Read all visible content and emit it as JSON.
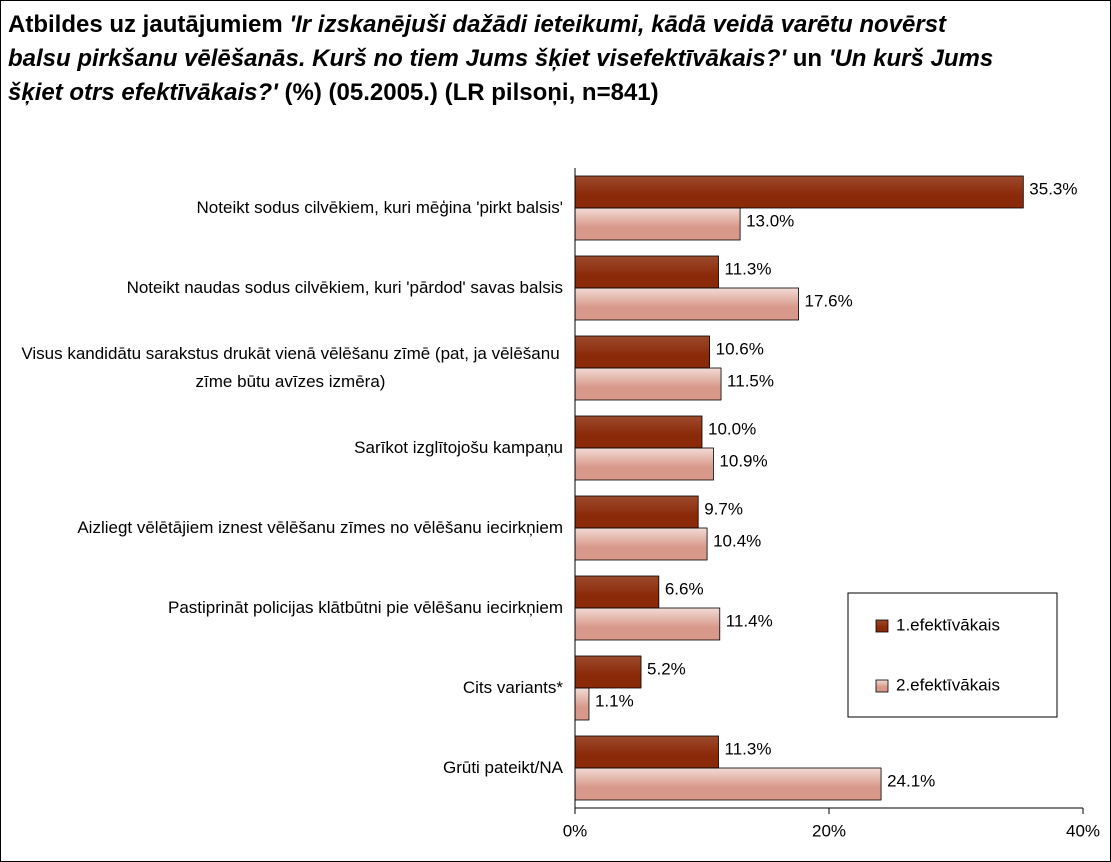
{
  "chart_data": {
    "type": "barh",
    "title": [
      {
        "text": "Atbildes uz jautājumiem ",
        "italic": false
      },
      {
        "text": "'Ir izskanējuši dažādi ieteikumi, kādā veidā varētu novērst balsu pirkšanu vēlēšanās. Kurš no tiem Jums šķiet visefektīvākais?'",
        "italic": true
      },
      {
        "text": " un ",
        "italic": false
      },
      {
        "text": "'Un kurš Jums šķiet otrs efektīvākais?'",
        "italic": true
      },
      {
        "text": " (%) (05.2005.) (LR pilsoņi, n=841)",
        "italic": false
      }
    ],
    "categories": [
      "Noteikt sodus cilvēkiem, kuri mēģina 'pirkt balsis'",
      "Noteikt naudas sodus cilvēkiem, kuri 'pārdod' savas balsis",
      "Visus kandidātu sarakstus drukāt vienā vēlēšanu zīmē (pat, ja vēlēšanu zīme būtu avīzes izmēra)",
      "Sarīkot izglītojošu kampaņu",
      "Aizliegt vēlētājiem iznest vēlēšanu zīmes no vēlēšanu iecirkņiem",
      "Pastiprināt policijas klātbūtni pie vēlēšanu iecirkņiem",
      "Cits variants*",
      "Grūti pateikt/NA"
    ],
    "series": [
      {
        "name": "1.efektīvākais",
        "color": "#8b2a08",
        "values": [
          35.3,
          11.3,
          10.6,
          10.0,
          9.7,
          6.6,
          5.2,
          11.3
        ],
        "value_labels": [
          "35.3%",
          "11.3%",
          "10.6%",
          "10.0%",
          "9.7%",
          "6.6%",
          "5.2%",
          "11.3%"
        ]
      },
      {
        "name": "2.efektīvākais",
        "color": "#d9998a",
        "values": [
          13.0,
          17.6,
          11.5,
          10.9,
          10.4,
          11.4,
          1.1,
          24.1
        ],
        "value_labels": [
          "13.0%",
          "17.6%",
          "11.5%",
          "10.9%",
          "10.4%",
          "11.4%",
          "1.1%",
          "24.1%"
        ]
      }
    ],
    "xlim": [
      0,
      40
    ],
    "xticks": [
      {
        "value": 0,
        "label": "0%"
      },
      {
        "value": 20,
        "label": "20%"
      },
      {
        "value": 40,
        "label": "40%"
      }
    ],
    "legend": "lower right"
  }
}
